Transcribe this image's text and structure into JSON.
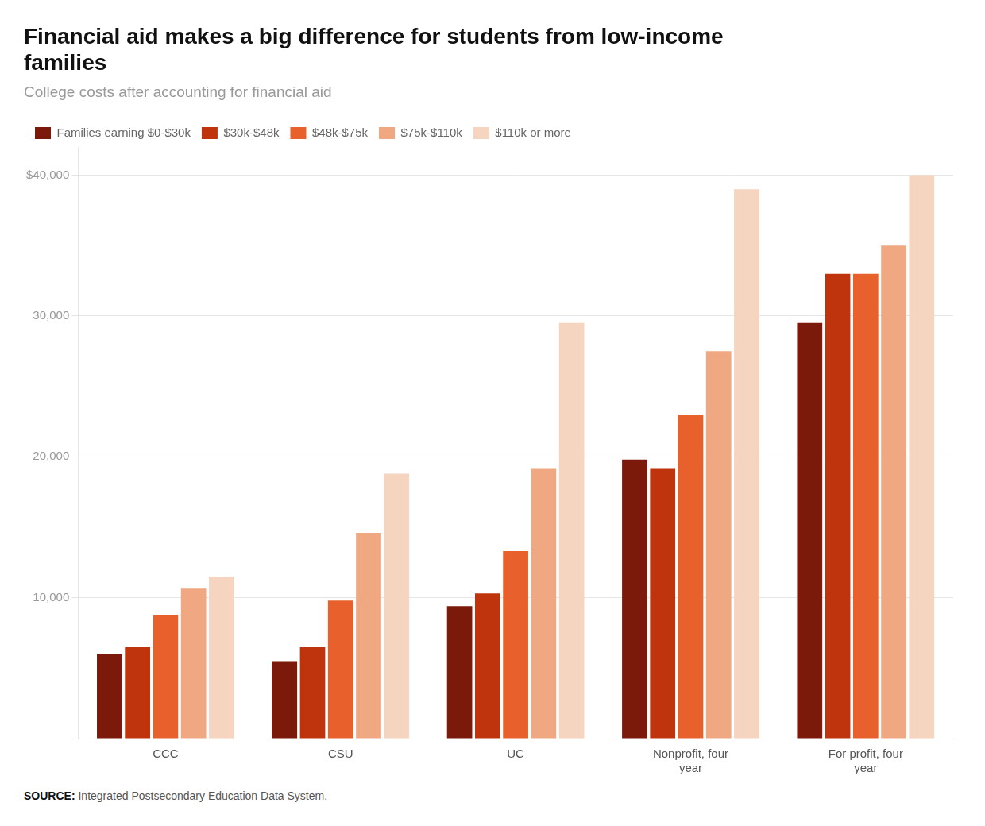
{
  "chart_data": {
    "type": "bar",
    "title": "Financial aid makes a big difference for students from low-income\nfamilies",
    "subtitle": "College costs after accounting for financial aid",
    "source": {
      "bold": "SOURCE:",
      "text": "Integrated Postsecondary Education Data System."
    },
    "categories": [
      "CCC",
      "CSU",
      "UC",
      "Nonprofit, four\nyear",
      "For profit, four\nyear"
    ],
    "series": [
      {
        "name": "Families earning $0-$30k",
        "color": "#7B1A0A",
        "values": [
          6000,
          5500,
          9400,
          19800,
          29500
        ]
      },
      {
        "name": "$30k-$48k",
        "color": "#C0340D",
        "values": [
          6500,
          6500,
          10300,
          19200,
          33000
        ]
      },
      {
        "name": "$48k-$75k",
        "color": "#E8602C",
        "values": [
          8800,
          9800,
          13300,
          23000,
          33000
        ]
      },
      {
        "name": "$75k-$110k",
        "color": "#F0A882",
        "values": [
          10700,
          14600,
          19200,
          27500,
          35000
        ]
      },
      {
        "name": "$110k or more",
        "color": "#F5D4C0",
        "values": [
          11500,
          18800,
          29500,
          39000,
          40000
        ]
      }
    ],
    "ylim": [
      0,
      42000
    ],
    "yticks": [
      {
        "value": 0,
        "label": ""
      },
      {
        "value": 10000,
        "label": "10,000"
      },
      {
        "value": 20000,
        "label": "20,000"
      },
      {
        "value": 30000,
        "label": "30,000"
      },
      {
        "value": 40000,
        "label": "$40,000"
      }
    ],
    "grid": true,
    "legend": "upper left"
  }
}
